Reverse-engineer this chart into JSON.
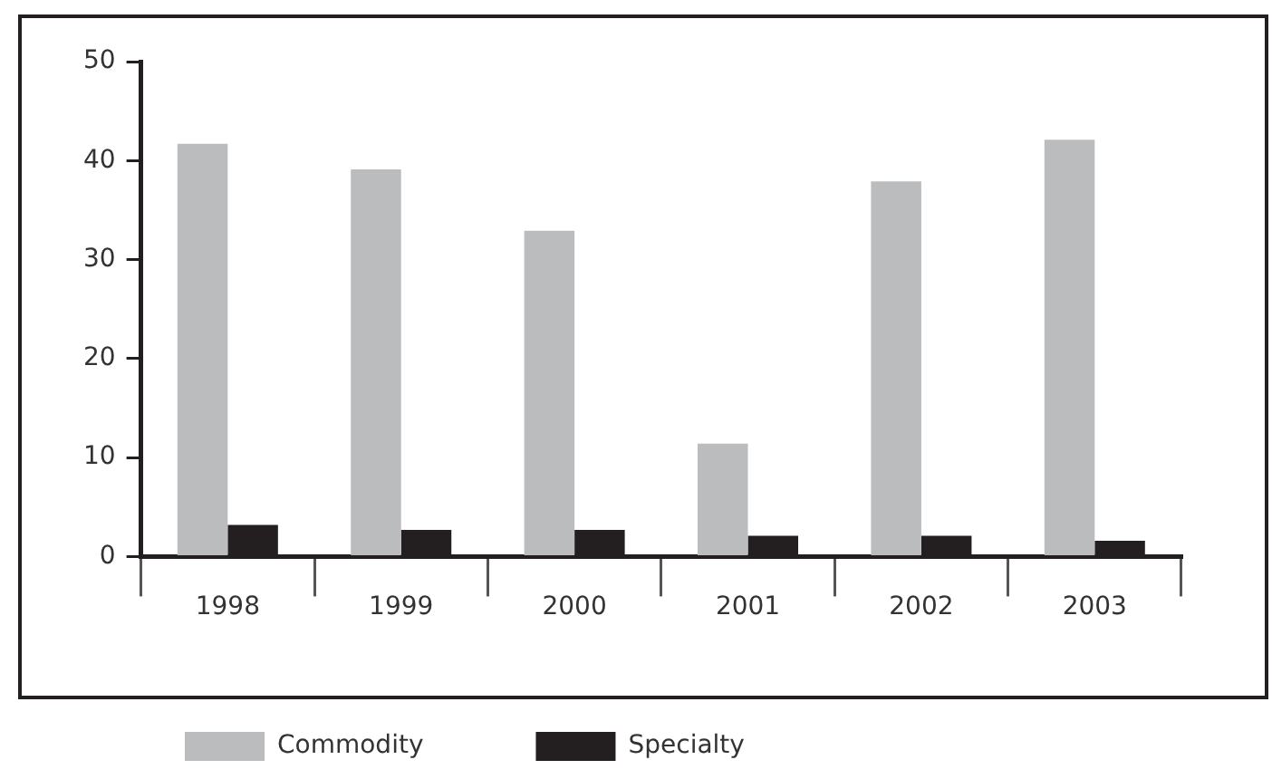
{
  "chart_data": {
    "type": "bar",
    "categories": [
      "1998",
      "1999",
      "2000",
      "2001",
      "2002",
      "2003"
    ],
    "series": [
      {
        "name": "Commodity",
        "color": "#bbbcbe",
        "values": [
          41.7,
          39.1,
          32.9,
          11.4,
          37.9,
          42.1
        ]
      },
      {
        "name": "Specialty",
        "color": "#231f20",
        "values": [
          3.2,
          2.7,
          2.7,
          2.1,
          2.1,
          1.6
        ]
      }
    ],
    "ylim": [
      0,
      50
    ],
    "yticks": [
      0,
      10,
      20,
      30,
      40,
      50
    ],
    "grid": false,
    "legend": "bottom"
  }
}
